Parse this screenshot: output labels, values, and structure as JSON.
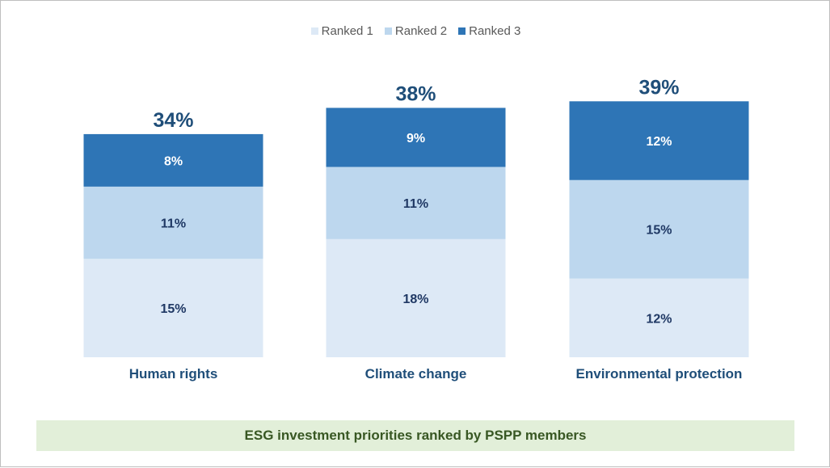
{
  "caption": "ESG investment priorities ranked by PSPP members",
  "legend": [
    {
      "label": "Ranked 1",
      "color": "#dde9f6"
    },
    {
      "label": "Ranked 2",
      "color": "#bdd7ee"
    },
    {
      "label": "Ranked 3",
      "color": "#2e75b6"
    }
  ],
  "chart_data": {
    "type": "bar",
    "stacked": true,
    "categories": [
      "Human rights",
      "Climate change",
      "Environmental protection"
    ],
    "series": [
      {
        "name": "Ranked 1",
        "values": [
          15,
          18,
          12
        ],
        "labels": [
          "15%",
          "18%",
          "12%"
        ],
        "color": "#dde9f6",
        "label_color": "#1f3864"
      },
      {
        "name": "Ranked 2",
        "values": [
          11,
          11,
          15
        ],
        "labels": [
          "11%",
          "11%",
          "15%"
        ],
        "color": "#bdd7ee",
        "label_color": "#1f3864"
      },
      {
        "name": "Ranked 3",
        "values": [
          8,
          9,
          12
        ],
        "labels": [
          "8%",
          "9%",
          "12%"
        ],
        "color": "#2e75b6",
        "label_color": "#ffffff"
      }
    ],
    "totals": [
      "34%",
      "38%",
      "39%"
    ],
    "legend_position": "top",
    "grid": false
  }
}
